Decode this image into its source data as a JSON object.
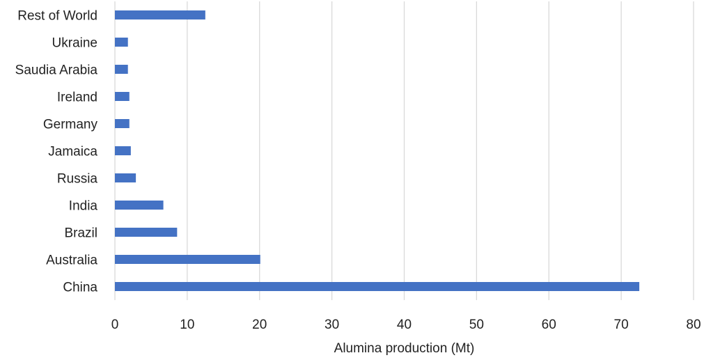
{
  "chart_data": {
    "type": "bar",
    "orientation": "horizontal",
    "categories": [
      "China",
      "Australia",
      "Brazil",
      "India",
      "Russia",
      "Jamaica",
      "Germany",
      "Ireland",
      "Saudia Arabia",
      "Ukraine",
      "Rest of World"
    ],
    "values": [
      72.5,
      20.1,
      8.6,
      6.7,
      2.9,
      2.2,
      2.0,
      2.0,
      1.8,
      1.8,
      12.5
    ],
    "xlabel": "Alumina production (Mt)",
    "ylabel": "",
    "xlim": [
      0,
      80
    ],
    "x_ticks": [
      "0",
      "10",
      "20",
      "30",
      "40",
      "50",
      "60",
      "70",
      "80"
    ],
    "grid": "vertical",
    "legend": "none",
    "bar_color": "#4472C4",
    "grid_color": "#D9D9D9"
  }
}
